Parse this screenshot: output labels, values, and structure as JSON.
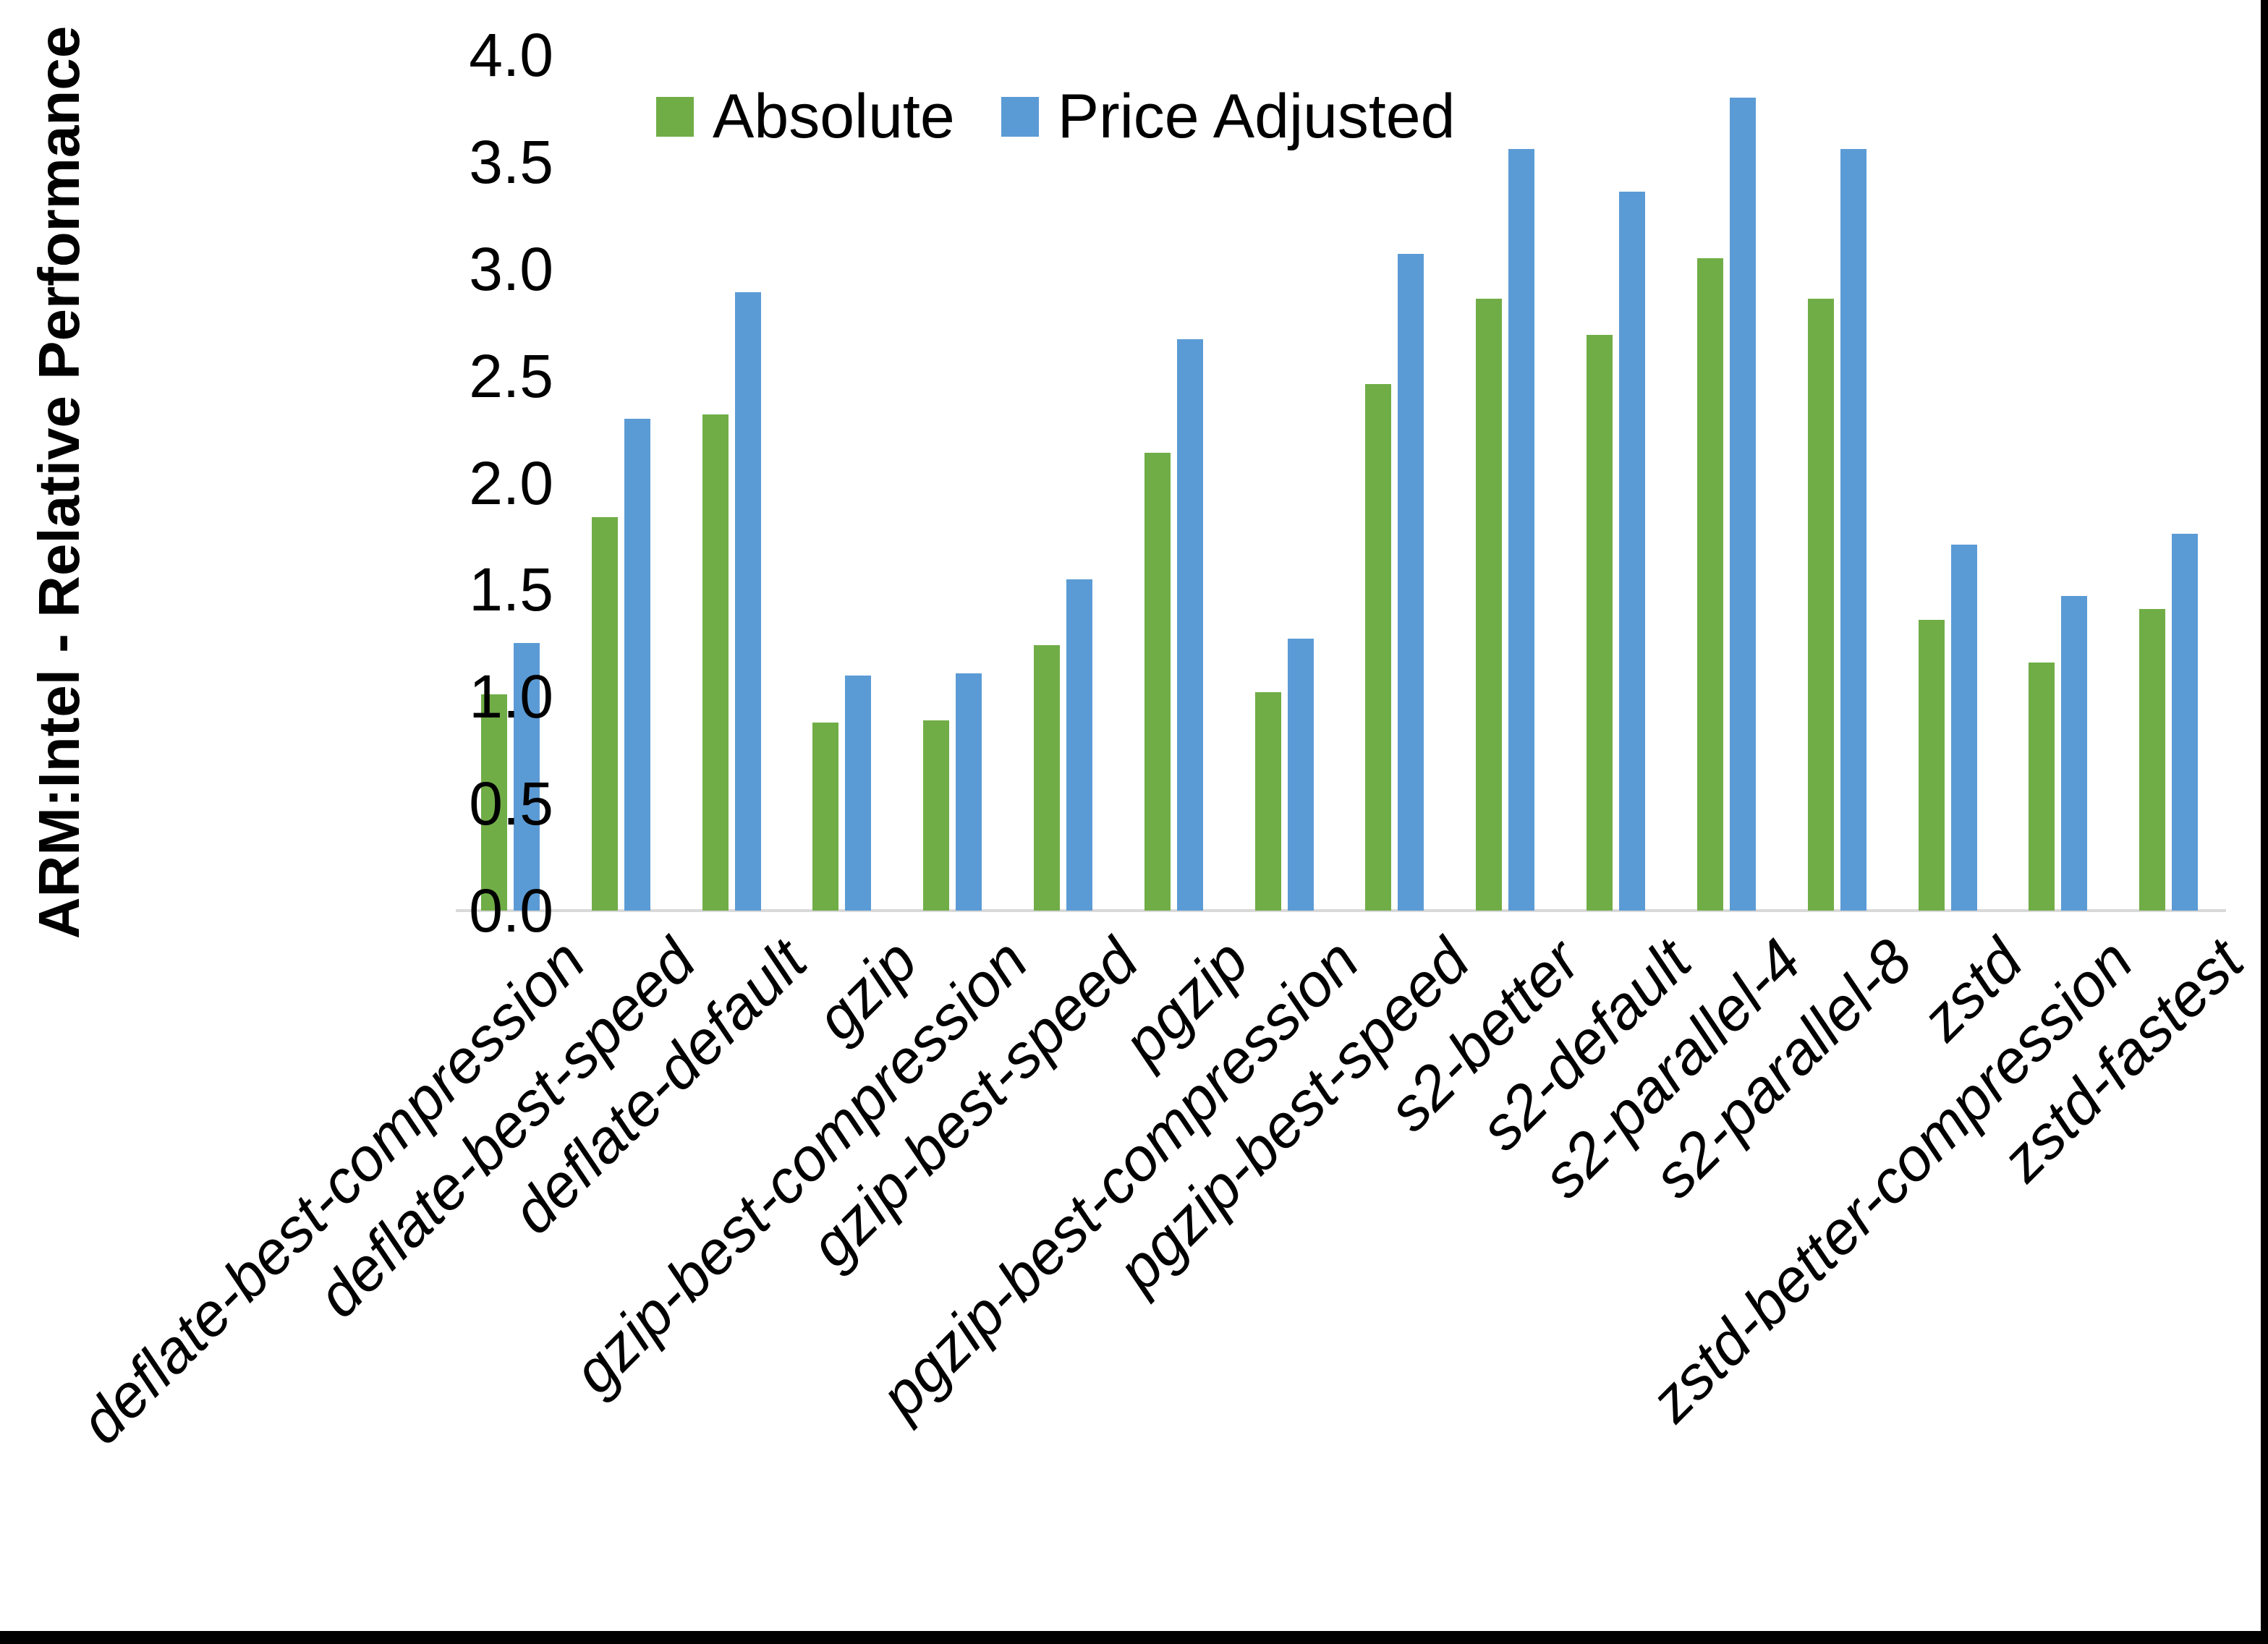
{
  "chart_data": {
    "type": "bar",
    "title": "",
    "ylabel": "ARM:Intel - Relative Performance",
    "xlabel": "",
    "ylim": [
      0.0,
      4.0
    ],
    "ytick_step": 0.5,
    "yticks": [
      "0.0",
      "0.5",
      "1.0",
      "1.5",
      "2.0",
      "2.5",
      "3.0",
      "3.5",
      "4.0"
    ],
    "grid": false,
    "legend_position": "top-center",
    "axis_line_color": "#D9D9D9",
    "categories": [
      "deflate-best-compression",
      "deflate-best-speed",
      "deflate-default",
      "gzip",
      "gzip-best-compression",
      "gzip-best-speed",
      "pgzip",
      "pgzip-best-compression",
      "pgzip-best-speed",
      "s2-better",
      "s2-default",
      "s2-parallel-4",
      "s2-parallel-8",
      "zstd",
      "zstd-better-compression",
      "zstd-fastest"
    ],
    "series": [
      {
        "name": "Absolute",
        "color": "#70AD47",
        "values": [
          1.01,
          1.84,
          2.32,
          0.88,
          0.89,
          1.24,
          2.14,
          1.02,
          2.46,
          2.86,
          2.69,
          3.05,
          2.86,
          1.36,
          1.16,
          1.41
        ]
      },
      {
        "name": "Price Adjusted",
        "color": "#5B9BD5",
        "values": [
          1.25,
          2.3,
          2.89,
          1.1,
          1.11,
          1.55,
          2.67,
          1.27,
          3.07,
          3.56,
          3.36,
          3.8,
          3.56,
          1.71,
          1.47,
          1.76
        ]
      }
    ]
  }
}
